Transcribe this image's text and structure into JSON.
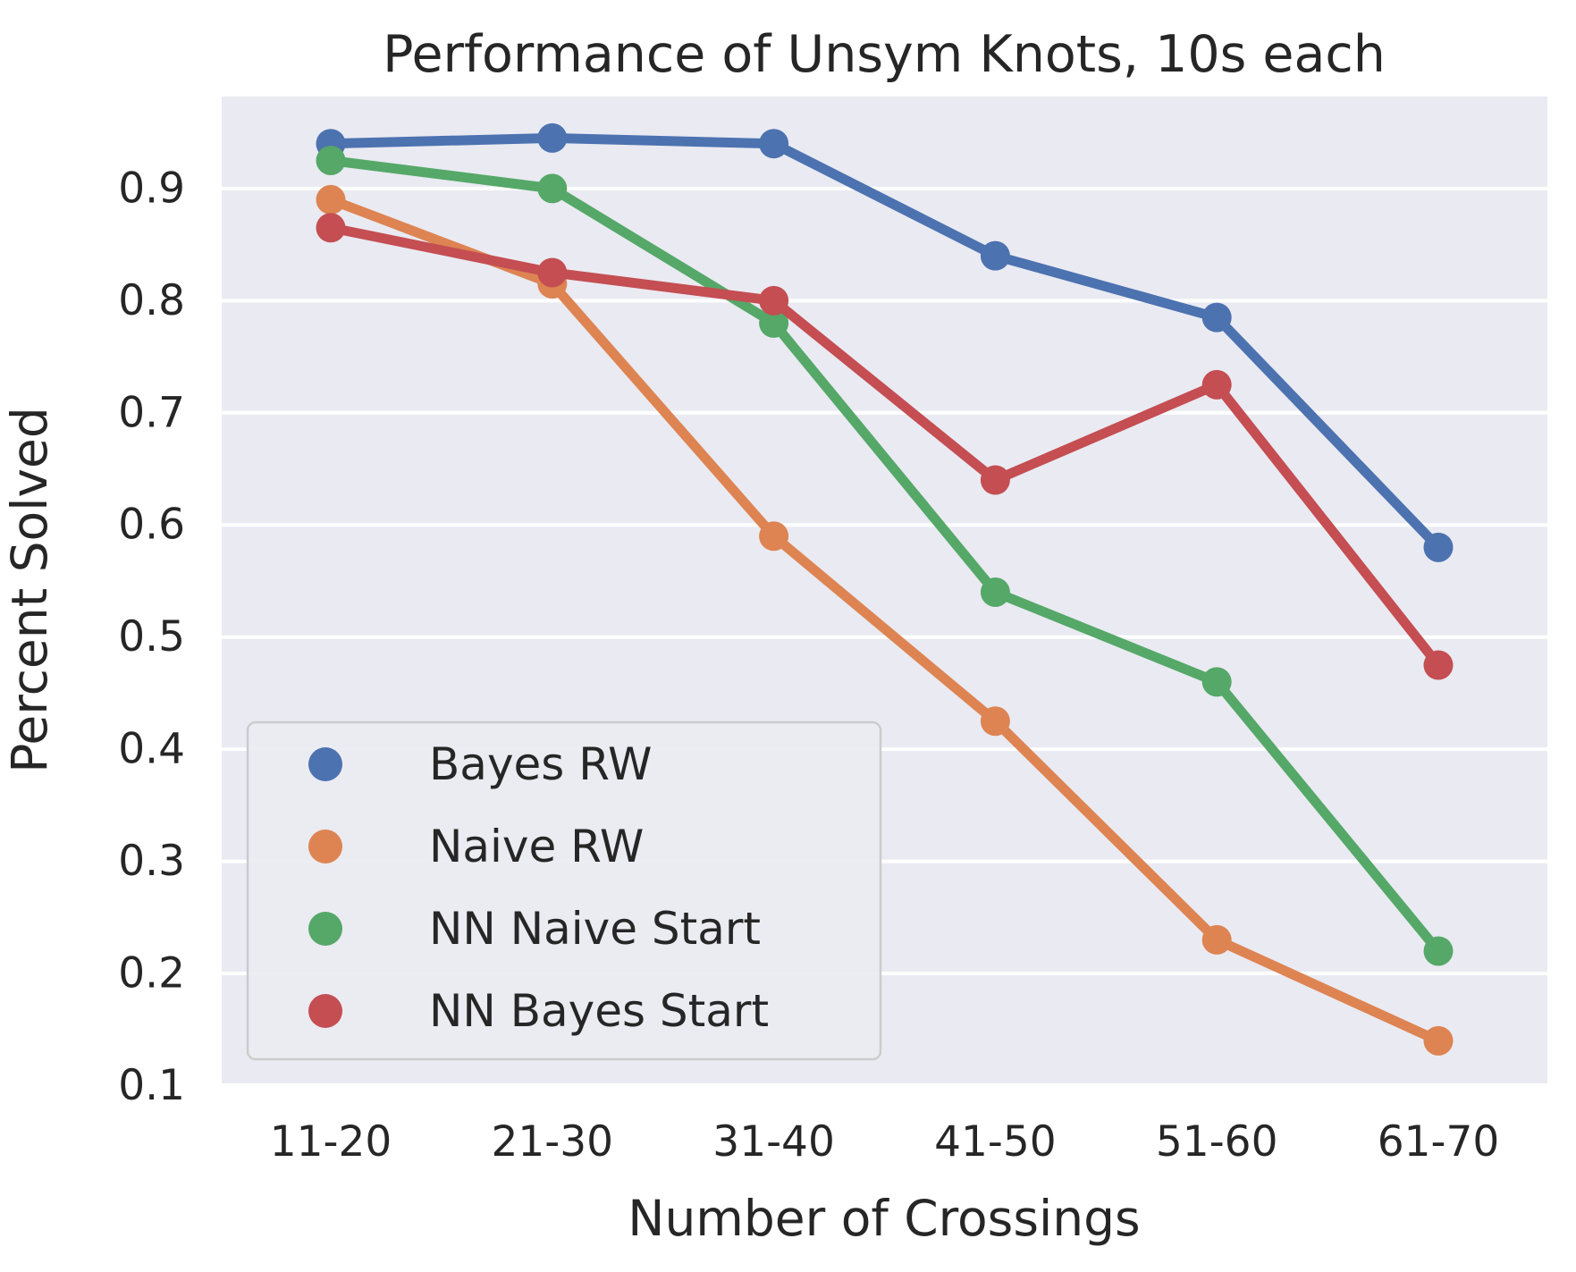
{
  "figure": {
    "title": "Performance of Unsym Knots, 10s each",
    "xlabel": "Number of Crossings",
    "ylabel": "Percent Solved"
  },
  "colors": {
    "figure_background": "#ffffff",
    "plot_background": "#eaeaf2",
    "gridline": "#ffffff",
    "text": "#262626",
    "legend_border": "#cccccc",
    "legend_fill": "#eaeaf2"
  },
  "chart_data": {
    "type": "line",
    "title": "Performance of Unsym Knots, 10s each",
    "xlabel": "Number of Crossings",
    "ylabel": "Percent Solved",
    "categories": [
      "11-20",
      "21-30",
      "31-40",
      "41-50",
      "51-60",
      "61-70"
    ],
    "y_ticks": [
      0.9,
      0.8,
      0.7,
      0.6,
      0.5,
      0.4,
      0.3,
      0.2,
      0.1
    ],
    "ylim": [
      0.102,
      0.982
    ],
    "grid": true,
    "legend_position": "lower left",
    "marker": "circle",
    "series": [
      {
        "name": "Bayes RW",
        "color": "#4c72b0",
        "values": [
          0.94,
          0.945,
          0.94,
          0.84,
          0.785,
          0.58
        ]
      },
      {
        "name": "Naive RW",
        "color": "#dd8452",
        "values": [
          0.89,
          0.815,
          0.59,
          0.425,
          0.23,
          0.14
        ]
      },
      {
        "name": "NN Naive Start",
        "color": "#55a868",
        "values": [
          0.925,
          0.9,
          0.78,
          0.54,
          0.46,
          0.22
        ]
      },
      {
        "name": "NN Bayes Start",
        "color": "#c44e52",
        "values": [
          0.865,
          0.825,
          0.8,
          0.64,
          0.725,
          0.475
        ]
      }
    ]
  }
}
